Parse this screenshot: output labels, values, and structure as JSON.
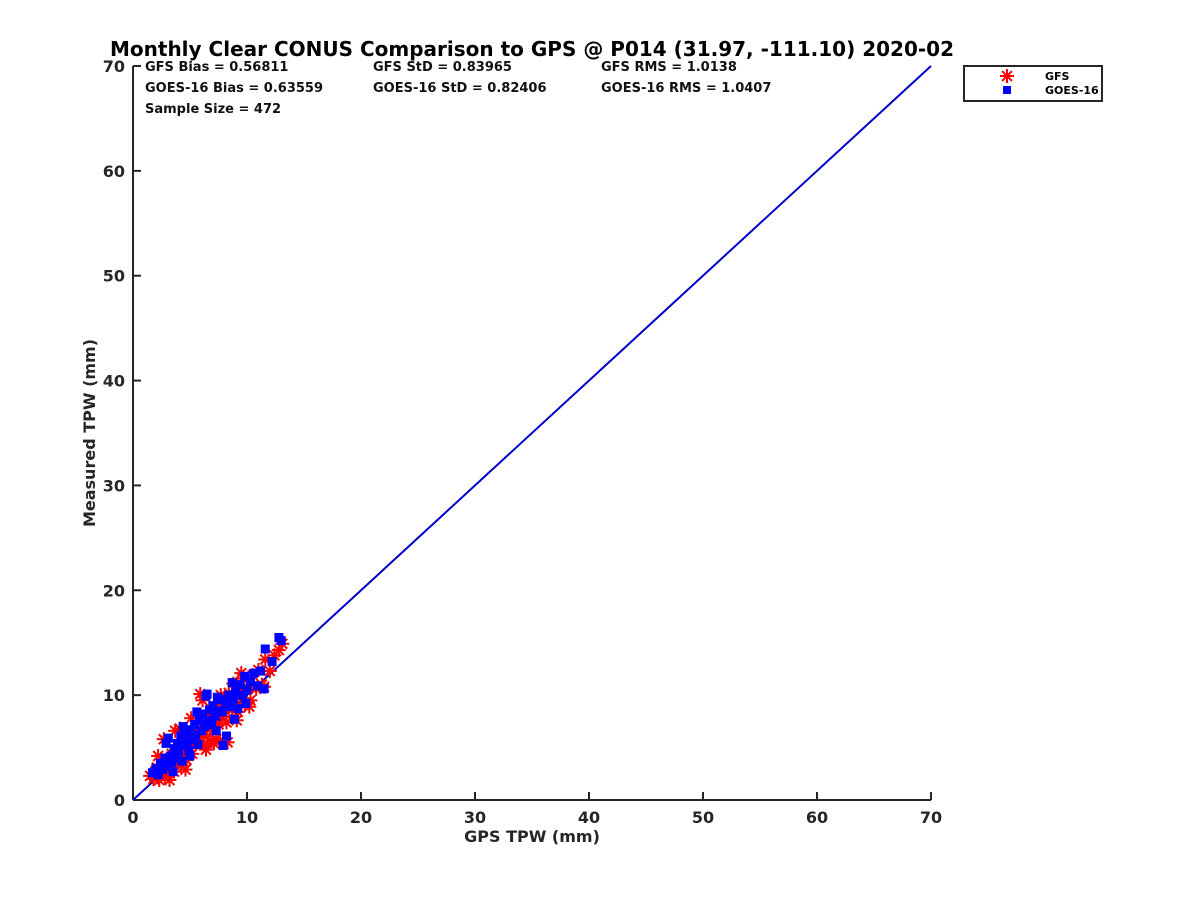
{
  "colors": {
    "gfs": "#ff0000",
    "goes16": "#0000ff",
    "reference_line": "#0000cc",
    "axis": "#262626"
  },
  "stats": {
    "gfs_bias": "GFS Bias = 0.56811",
    "gfs_std": "GFS StD = 0.83965",
    "gfs_rms": "GFS RMS = 1.0138",
    "goes_bias": "GOES-16 Bias = 0.63559",
    "goes_std": "GOES-16 StD = 0.82406",
    "goes_rms": "GOES-16 RMS = 1.0407",
    "sample_size": "Sample Size = 472"
  },
  "chart_data": {
    "type": "scatter",
    "title": "Monthly Clear CONUS Comparison to GPS @ P014 (31.97, -111.10) 2020-02",
    "xlabel": "GPS TPW (mm)",
    "ylabel": "Measured TPW (mm)",
    "xlim": [
      0,
      70
    ],
    "ylim": [
      0,
      70
    ],
    "xticks": [
      0,
      10,
      20,
      30,
      40,
      50,
      60,
      70
    ],
    "yticks": [
      0,
      10,
      20,
      30,
      40,
      50,
      60,
      70
    ],
    "grid": false,
    "legend_position": "top-right",
    "reference_line": {
      "x": [
        0,
        70
      ],
      "y": [
        0,
        70
      ]
    },
    "series": [
      {
        "name": "GFS",
        "marker": "asterisk",
        "points": [
          [
            1.5,
            2.3
          ],
          [
            1.8,
            2.0
          ],
          [
            2.0,
            2.6
          ],
          [
            2.1,
            3.1
          ],
          [
            2.3,
            1.9
          ],
          [
            2.5,
            2.5
          ],
          [
            2.6,
            3.4
          ],
          [
            2.8,
            2.2
          ],
          [
            3.0,
            2.8
          ],
          [
            3.1,
            3.9
          ],
          [
            3.3,
            3.0
          ],
          [
            3.4,
            4.4
          ],
          [
            3.6,
            2.7
          ],
          [
            3.8,
            3.6
          ],
          [
            3.9,
            5.2
          ],
          [
            4.0,
            4.1
          ],
          [
            4.2,
            3.3
          ],
          [
            4.3,
            5.6
          ],
          [
            4.5,
            4.5
          ],
          [
            4.7,
            3.8
          ],
          [
            4.8,
            5.9
          ],
          [
            5.0,
            5.0
          ],
          [
            5.2,
            4.4
          ],
          [
            5.3,
            6.3
          ],
          [
            5.5,
            5.4
          ],
          [
            5.6,
            7.0
          ],
          [
            5.8,
            5.9
          ],
          [
            5.9,
            10.1
          ],
          [
            6.0,
            6.5
          ],
          [
            6.2,
            5.3
          ],
          [
            6.3,
            7.2
          ],
          [
            6.5,
            6.1
          ],
          [
            6.6,
            8.0
          ],
          [
            6.8,
            6.8
          ],
          [
            6.9,
            5.6
          ],
          [
            7.0,
            7.5
          ],
          [
            7.2,
            8.6
          ],
          [
            7.3,
            5.8
          ],
          [
            7.5,
            7.2
          ],
          [
            7.6,
            9.3
          ],
          [
            7.8,
            8.0
          ],
          [
            7.9,
            5.7
          ],
          [
            8.1,
            8.8
          ],
          [
            8.2,
            7.4
          ],
          [
            8.4,
            10.2
          ],
          [
            8.5,
            9.0
          ],
          [
            8.7,
            7.9
          ],
          [
            8.8,
            11.1
          ],
          [
            9.0,
            9.6
          ],
          [
            9.2,
            8.4
          ],
          [
            9.4,
            10.4
          ],
          [
            9.6,
            11.6
          ],
          [
            9.8,
            9.2
          ],
          [
            10.0,
            10.8
          ],
          [
            10.3,
            9.5
          ],
          [
            10.5,
            11.9
          ],
          [
            10.8,
            10.6
          ],
          [
            11.0,
            12.4
          ],
          [
            11.3,
            11.0
          ],
          [
            11.6,
            13.4
          ],
          [
            12.0,
            12.3
          ],
          [
            12.4,
            13.8
          ],
          [
            12.8,
            14.3
          ],
          [
            13.1,
            14.9
          ],
          [
            2.7,
            5.8
          ],
          [
            3.2,
            1.9
          ],
          [
            4.6,
            2.9
          ],
          [
            5.1,
            7.8
          ],
          [
            6.1,
            9.5
          ],
          [
            7.1,
            5.4
          ],
          [
            8.3,
            5.5
          ],
          [
            9.5,
            12.1
          ],
          [
            10.2,
            8.9
          ],
          [
            3.7,
            6.6
          ],
          [
            2.2,
            4.2
          ],
          [
            11.5,
            10.8
          ],
          [
            6.4,
            4.8
          ],
          [
            4.1,
            6.8
          ],
          [
            7.7,
            10.0
          ],
          [
            9.1,
            7.6
          ]
        ]
      },
      {
        "name": "GOES-16",
        "marker": "square",
        "points": [
          [
            1.7,
            2.6
          ],
          [
            2.0,
            3.0
          ],
          [
            2.2,
            2.4
          ],
          [
            2.4,
            3.5
          ],
          [
            2.6,
            2.9
          ],
          [
            2.8,
            4.0
          ],
          [
            3.0,
            3.2
          ],
          [
            3.1,
            5.9
          ],
          [
            3.3,
            4.2
          ],
          [
            3.4,
            3.6
          ],
          [
            3.6,
            4.9
          ],
          [
            3.7,
            4.0
          ],
          [
            3.9,
            5.4
          ],
          [
            4.0,
            4.6
          ],
          [
            4.2,
            6.1
          ],
          [
            4.3,
            3.7
          ],
          [
            4.5,
            5.2
          ],
          [
            4.6,
            6.5
          ],
          [
            4.8,
            5.6
          ],
          [
            4.9,
            4.7
          ],
          [
            5.1,
            6.7
          ],
          [
            5.2,
            5.8
          ],
          [
            5.4,
            7.2
          ],
          [
            5.5,
            6.2
          ],
          [
            5.7,
            5.3
          ],
          [
            5.8,
            7.6
          ],
          [
            6.0,
            6.6
          ],
          [
            6.1,
            8.2
          ],
          [
            6.3,
            7.0
          ],
          [
            6.4,
            9.9
          ],
          [
            6.6,
            7.6
          ],
          [
            6.7,
            8.6
          ],
          [
            6.9,
            7.2
          ],
          [
            7.0,
            9.0
          ],
          [
            7.2,
            8.0
          ],
          [
            7.3,
            6.6
          ],
          [
            7.5,
            8.5
          ],
          [
            7.6,
            9.6
          ],
          [
            7.8,
            8.4
          ],
          [
            7.9,
            5.2
          ],
          [
            8.1,
            9.2
          ],
          [
            8.2,
            6.1
          ],
          [
            8.4,
            10.0
          ],
          [
            8.5,
            8.9
          ],
          [
            8.7,
            11.2
          ],
          [
            8.8,
            9.6
          ],
          [
            9.0,
            10.4
          ],
          [
            9.2,
            8.7
          ],
          [
            9.4,
            11.0
          ],
          [
            9.6,
            10.0
          ],
          [
            9.8,
            11.8
          ],
          [
            10.0,
            10.5
          ],
          [
            10.3,
            11.3
          ],
          [
            10.6,
            12.1
          ],
          [
            10.9,
            10.9
          ],
          [
            11.2,
            12.3
          ],
          [
            11.5,
            10.6
          ],
          [
            11.6,
            14.4
          ],
          [
            12.2,
            13.2
          ],
          [
            12.8,
            15.5
          ],
          [
            13.0,
            15.2
          ],
          [
            2.9,
            5.4
          ],
          [
            5.0,
            4.2
          ],
          [
            6.5,
            10.1
          ],
          [
            7.4,
            9.8
          ],
          [
            3.5,
            2.7
          ],
          [
            8.9,
            7.7
          ],
          [
            4.4,
            7.0
          ],
          [
            9.9,
            9.2
          ],
          [
            5.6,
            8.4
          ]
        ]
      }
    ]
  }
}
